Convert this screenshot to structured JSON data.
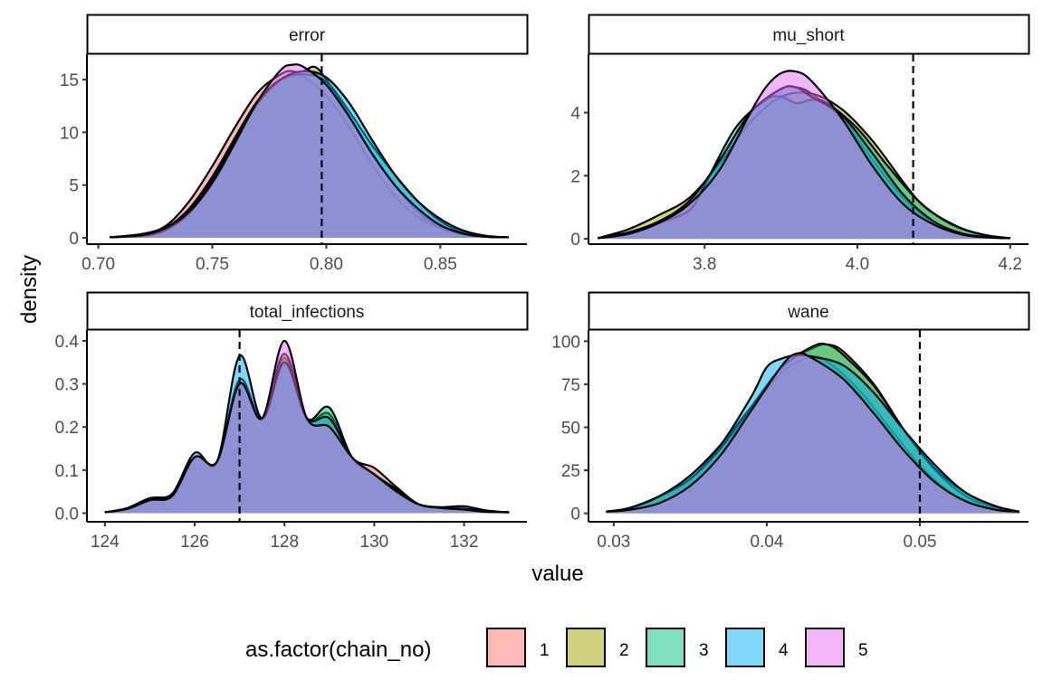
{
  "figure": {
    "xlabel": "value",
    "ylabel": "density",
    "legend_title": "as.factor(chain_no)"
  },
  "chart_data": [
    {
      "type": "area",
      "title": "error",
      "xlim": [
        0.695,
        0.888
      ],
      "ylim": [
        -0.6,
        17.4
      ],
      "xticks": [
        0.7,
        0.75,
        0.8,
        0.85
      ],
      "xtick_labels": [
        "0.70",
        "0.75",
        "0.80",
        "0.85"
      ],
      "yticks": [
        0,
        5,
        10,
        15
      ],
      "ytick_labels": [
        "0",
        "5",
        "10",
        "15"
      ],
      "vline": 0.798,
      "series": [
        {
          "name": "1",
          "x": [
            0.705,
            0.72,
            0.73,
            0.74,
            0.75,
            0.76,
            0.77,
            0.78,
            0.785,
            0.79,
            0.8,
            0.81,
            0.82,
            0.83,
            0.84,
            0.85,
            0.86,
            0.87,
            0.88
          ],
          "y": [
            0.05,
            0.4,
            1.2,
            3.5,
            6.8,
            10.5,
            13.8,
            15.5,
            15.8,
            15.3,
            13.5,
            10.5,
            7.0,
            4.0,
            2.0,
            0.9,
            0.3,
            0.1,
            0.05
          ]
        },
        {
          "name": "2",
          "x": [
            0.705,
            0.72,
            0.73,
            0.74,
            0.75,
            0.76,
            0.77,
            0.78,
            0.785,
            0.79,
            0.795,
            0.8,
            0.81,
            0.82,
            0.83,
            0.84,
            0.85,
            0.86,
            0.87,
            0.88
          ],
          "y": [
            0.05,
            0.3,
            1.0,
            2.8,
            5.8,
            9.5,
            13.0,
            15.0,
            15.5,
            15.8,
            16.2,
            15.0,
            11.5,
            8.0,
            5.0,
            2.5,
            1.0,
            0.3,
            0.1,
            0.05
          ]
        },
        {
          "name": "3",
          "x": [
            0.705,
            0.72,
            0.73,
            0.74,
            0.75,
            0.76,
            0.77,
            0.78,
            0.79,
            0.8,
            0.81,
            0.82,
            0.83,
            0.84,
            0.85,
            0.86,
            0.87,
            0.88
          ],
          "y": [
            0.05,
            0.3,
            1.0,
            2.6,
            5.5,
            9.5,
            13.0,
            15.0,
            15.5,
            14.8,
            12.0,
            8.8,
            6.0,
            3.5,
            1.6,
            0.5,
            0.1,
            0.05
          ]
        },
        {
          "name": "4",
          "x": [
            0.705,
            0.72,
            0.73,
            0.74,
            0.75,
            0.76,
            0.77,
            0.78,
            0.79,
            0.8,
            0.81,
            0.82,
            0.83,
            0.84,
            0.85,
            0.86,
            0.87,
            0.88
          ],
          "y": [
            0.05,
            0.2,
            0.8,
            2.4,
            5.3,
            9.2,
            12.8,
            15.0,
            15.8,
            15.2,
            12.8,
            9.3,
            6.0,
            3.5,
            1.8,
            0.7,
            0.2,
            0.05
          ]
        },
        {
          "name": "5",
          "x": [
            0.705,
            0.72,
            0.73,
            0.74,
            0.75,
            0.76,
            0.77,
            0.78,
            0.785,
            0.79,
            0.8,
            0.81,
            0.82,
            0.83,
            0.84,
            0.85,
            0.86,
            0.87,
            0.88
          ],
          "y": [
            0.05,
            0.3,
            1.0,
            2.5,
            5.2,
            9.0,
            13.0,
            15.9,
            16.4,
            16.2,
            14.5,
            11.5,
            8.0,
            5.0,
            2.8,
            1.2,
            0.4,
            0.1,
            0.05
          ]
        }
      ]
    },
    {
      "type": "area",
      "title": "mu_short",
      "xlim": [
        3.648,
        4.224
      ],
      "ylim": [
        -0.17,
        5.85
      ],
      "xticks": [
        3.8,
        4.0,
        4.2
      ],
      "xtick_labels": [
        "3.8",
        "4.0",
        "4.2"
      ],
      "yticks": [
        0,
        2,
        4
      ],
      "ytick_labels": [
        "0",
        "2",
        "4"
      ],
      "vline": 4.073,
      "series": [
        {
          "name": "1",
          "x": [
            3.66,
            3.7,
            3.74,
            3.78,
            3.82,
            3.86,
            3.9,
            3.92,
            3.94,
            3.98,
            4.02,
            4.06,
            4.1,
            4.14,
            4.18,
            4.2
          ],
          "y": [
            0.02,
            0.2,
            0.55,
            1.2,
            2.5,
            4.0,
            4.75,
            4.8,
            4.6,
            3.8,
            2.5,
            1.3,
            0.5,
            0.15,
            0.04,
            0.02
          ]
        },
        {
          "name": "2",
          "x": [
            3.66,
            3.7,
            3.74,
            3.78,
            3.82,
            3.86,
            3.9,
            3.94,
            3.98,
            4.02,
            4.06,
            4.08,
            4.1,
            4.14,
            4.18,
            4.2
          ],
          "y": [
            0.02,
            0.3,
            0.75,
            1.3,
            2.4,
            3.7,
            4.5,
            4.6,
            4.1,
            3.1,
            1.8,
            1.2,
            0.8,
            0.3,
            0.06,
            0.02
          ]
        },
        {
          "name": "3",
          "x": [
            3.66,
            3.7,
            3.74,
            3.78,
            3.8,
            3.84,
            3.88,
            3.9,
            3.92,
            3.94,
            3.96,
            4.0,
            4.04,
            4.08,
            4.12,
            4.16,
            4.2
          ],
          "y": [
            0.02,
            0.15,
            0.5,
            0.9,
            1.7,
            3.5,
            4.4,
            4.5,
            4.3,
            4.4,
            4.3,
            3.5,
            2.3,
            1.2,
            0.5,
            0.15,
            0.02
          ]
        },
        {
          "name": "4",
          "x": [
            3.66,
            3.7,
            3.74,
            3.78,
            3.82,
            3.86,
            3.9,
            3.92,
            3.94,
            3.98,
            4.02,
            4.06,
            4.1,
            4.14,
            4.18,
            4.2
          ],
          "y": [
            0.02,
            0.2,
            0.55,
            1.2,
            2.5,
            4.0,
            4.75,
            4.8,
            4.5,
            3.9,
            2.7,
            1.4,
            0.55,
            0.15,
            0.04,
            0.02
          ]
        },
        {
          "name": "5",
          "x": [
            3.66,
            3.7,
            3.74,
            3.78,
            3.82,
            3.86,
            3.88,
            3.9,
            3.92,
            3.94,
            3.98,
            4.02,
            4.06,
            4.1,
            4.14,
            4.18,
            4.2
          ],
          "y": [
            0.02,
            0.15,
            0.5,
            1.1,
            2.2,
            4.0,
            4.8,
            5.25,
            5.3,
            5.0,
            3.8,
            2.3,
            1.1,
            0.45,
            0.12,
            0.03,
            0.02
          ]
        }
      ]
    },
    {
      "type": "area",
      "title": "total_infections",
      "xlim": [
        123.6,
        133.4
      ],
      "ylim": [
        -0.02,
        0.425
      ],
      "xticks": [
        124,
        126,
        128,
        130,
        132
      ],
      "xtick_labels": [
        "124",
        "126",
        "128",
        "130",
        "132"
      ],
      "yticks": [
        0.0,
        0.1,
        0.2,
        0.3,
        0.4
      ],
      "ytick_labels": [
        "0.0",
        "0.1",
        "0.2",
        "0.3",
        "0.4"
      ],
      "vline": 127,
      "series": [
        {
          "name": "1",
          "x": [
            124,
            124.5,
            125,
            125.5,
            126,
            126.5,
            127,
            127.5,
            128,
            128.5,
            129,
            129.5,
            130,
            130.5,
            131,
            131.5,
            132,
            132.5,
            133
          ],
          "y": [
            0.002,
            0.01,
            0.03,
            0.045,
            0.13,
            0.12,
            0.31,
            0.22,
            0.36,
            0.22,
            0.23,
            0.13,
            0.105,
            0.06,
            0.02,
            0.012,
            0.01,
            0.004,
            0.002
          ]
        },
        {
          "name": "2",
          "x": [
            124,
            124.5,
            125,
            125.5,
            126,
            126.5,
            127,
            127.5,
            128,
            128.5,
            129,
            129.5,
            130,
            130.5,
            131,
            131.5,
            132,
            132.5,
            133
          ],
          "y": [
            0.002,
            0.01,
            0.03,
            0.04,
            0.13,
            0.12,
            0.3,
            0.22,
            0.37,
            0.22,
            0.23,
            0.13,
            0.09,
            0.055,
            0.02,
            0.012,
            0.01,
            0.004,
            0.002
          ]
        },
        {
          "name": "3",
          "x": [
            124,
            124.5,
            125,
            125.5,
            126,
            126.5,
            127,
            127.5,
            128,
            128.5,
            129,
            129.5,
            130,
            130.5,
            131,
            131.5,
            132,
            132.5,
            133
          ],
          "y": [
            0.002,
            0.012,
            0.035,
            0.045,
            0.13,
            0.12,
            0.3,
            0.22,
            0.35,
            0.22,
            0.245,
            0.13,
            0.09,
            0.05,
            0.02,
            0.014,
            0.016,
            0.006,
            0.002
          ]
        },
        {
          "name": "4",
          "x": [
            124,
            124.5,
            125,
            125.5,
            126,
            126.5,
            127,
            127.5,
            128,
            128.5,
            129,
            129.5,
            130,
            130.5,
            131,
            131.5,
            132,
            132.5,
            133
          ],
          "y": [
            0.002,
            0.01,
            0.03,
            0.045,
            0.14,
            0.12,
            0.365,
            0.22,
            0.35,
            0.22,
            0.22,
            0.13,
            0.09,
            0.05,
            0.02,
            0.012,
            0.01,
            0.004,
            0.002
          ]
        },
        {
          "name": "5",
          "x": [
            124,
            124.5,
            125,
            125.5,
            126,
            126.5,
            127,
            127.5,
            128,
            128.5,
            129,
            129.5,
            130,
            130.5,
            131,
            131.5,
            132,
            132.5,
            133
          ],
          "y": [
            0.002,
            0.01,
            0.03,
            0.04,
            0.13,
            0.12,
            0.3,
            0.22,
            0.4,
            0.22,
            0.2,
            0.13,
            0.09,
            0.05,
            0.02,
            0.012,
            0.008,
            0.003,
            0.002
          ]
        }
      ]
    },
    {
      "type": "area",
      "title": "wane",
      "xlim": [
        0.02835,
        0.0571
      ],
      "ylim": [
        -4.9,
        106.5
      ],
      "xticks": [
        0.03,
        0.04,
        0.05
      ],
      "xtick_labels": [
        "0.03",
        "0.04",
        "0.05"
      ],
      "yticks": [
        0,
        25,
        50,
        75,
        100
      ],
      "ytick_labels": [
        "0",
        "25",
        "50",
        "75",
        "100"
      ],
      "vline": 0.05,
      "series": [
        {
          "name": "1",
          "x": [
            0.0295,
            0.031,
            0.033,
            0.035,
            0.037,
            0.039,
            0.041,
            0.042,
            0.043,
            0.044,
            0.046,
            0.048,
            0.05,
            0.052,
            0.054,
            0.0565
          ],
          "y": [
            1,
            3,
            10,
            22,
            40,
            62,
            82,
            88,
            91,
            88,
            72,
            50,
            28,
            12,
            4,
            1
          ]
        },
        {
          "name": "2",
          "x": [
            0.0295,
            0.031,
            0.033,
            0.035,
            0.037,
            0.039,
            0.041,
            0.043,
            0.044,
            0.045,
            0.047,
            0.049,
            0.051,
            0.053,
            0.055,
            0.0565
          ],
          "y": [
            1,
            3,
            10,
            20,
            38,
            62,
            85,
            96,
            98,
            94,
            75,
            48,
            25,
            10,
            3,
            1
          ]
        },
        {
          "name": "3",
          "x": [
            0.0295,
            0.031,
            0.033,
            0.035,
            0.037,
            0.039,
            0.041,
            0.043,
            0.044,
            0.045,
            0.047,
            0.049,
            0.051,
            0.053,
            0.055,
            0.0565
          ],
          "y": [
            1,
            3,
            10,
            20,
            38,
            62,
            85,
            97,
            98,
            92,
            74,
            48,
            26,
            12,
            4,
            1
          ]
        },
        {
          "name": "4",
          "x": [
            0.0295,
            0.031,
            0.033,
            0.035,
            0.037,
            0.039,
            0.04,
            0.041,
            0.042,
            0.043,
            0.045,
            0.047,
            0.049,
            0.051,
            0.053,
            0.055,
            0.0565
          ],
          "y": [
            1,
            3,
            10,
            22,
            40,
            68,
            85,
            90,
            92,
            91,
            86,
            70,
            48,
            28,
            12,
            4,
            1
          ]
        },
        {
          "name": "5",
          "x": [
            0.0295,
            0.031,
            0.033,
            0.035,
            0.037,
            0.039,
            0.041,
            0.042,
            0.043,
            0.045,
            0.047,
            0.049,
            0.051,
            0.053,
            0.055,
            0.0565
          ],
          "y": [
            1,
            2,
            6,
            16,
            34,
            60,
            86,
            93,
            90,
            78,
            58,
            36,
            18,
            7,
            2,
            1
          ]
        }
      ]
    }
  ],
  "legend": {
    "entries": [
      {
        "label": "1",
        "color": "#F8766D"
      },
      {
        "label": "2",
        "color": "#A3A500"
      },
      {
        "label": "3",
        "color": "#00BF7D"
      },
      {
        "label": "4",
        "color": "#00B0F6"
      },
      {
        "label": "5",
        "color": "#E76BF3"
      }
    ],
    "fill_alpha": 0.5
  }
}
